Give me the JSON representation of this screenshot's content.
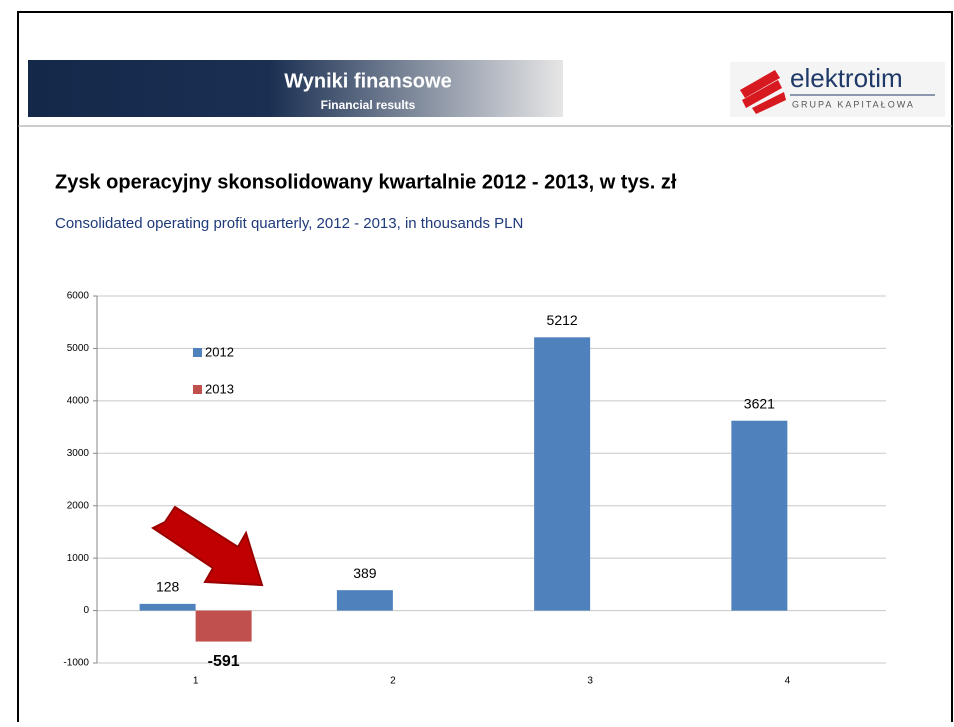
{
  "header": {
    "title": "Wyniki finansowe",
    "subtitle": "Financial results",
    "logo": "elektrotim",
    "logo_tagline": "GRUPA KAPITAŁOWA"
  },
  "chart_data": {
    "type": "bar",
    "title": "Zysk operacyjny skonsolidowany kwartalnie 2012 - 2013, w tys. zł",
    "subtitle": "Consolidated operating profit quarterly, 2012 - 2013, in thousands PLN",
    "categories": [
      "1",
      "2",
      "3",
      "4"
    ],
    "series": [
      {
        "name": "2012",
        "color": "#4f81bd",
        "values": [
          128,
          389,
          5212,
          3621
        ]
      },
      {
        "name": "2013",
        "color": "#c0504d",
        "values": [
          -591,
          null,
          null,
          null
        ]
      }
    ],
    "ylim": [
      -1000,
      6000
    ],
    "yticks": [
      -1000,
      0,
      1000,
      2000,
      3000,
      4000,
      5000,
      6000
    ],
    "grid": true,
    "legend": "top-left"
  }
}
